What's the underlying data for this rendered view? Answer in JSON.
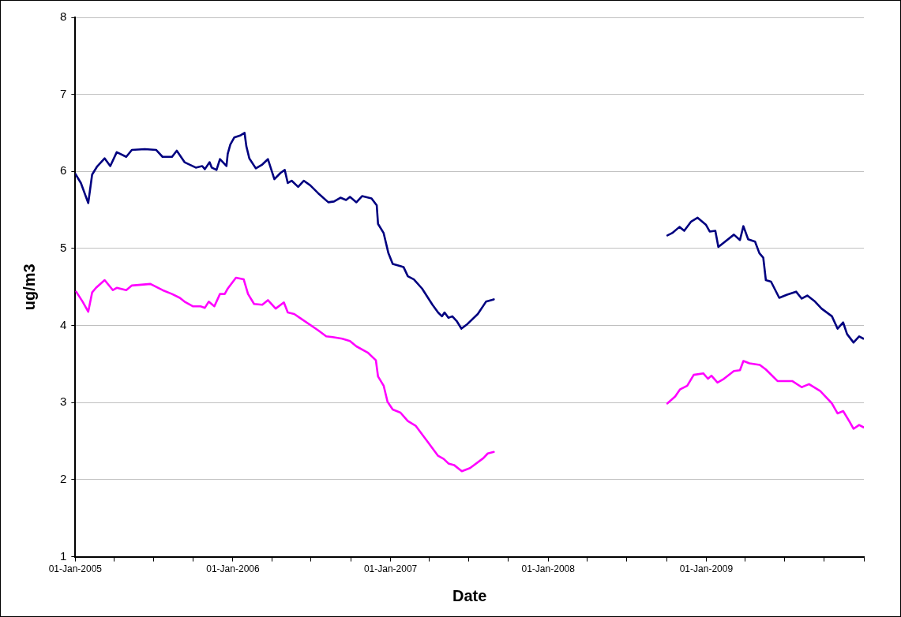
{
  "chart_data": {
    "type": "line",
    "xlabel": "Date",
    "ylabel": "ug/m3",
    "grid": "y",
    "legend": false,
    "marker": "none",
    "line_style": "solid",
    "xlim": [
      "2005-01-01",
      "2010-01-01"
    ],
    "xticks": [
      {
        "value": "2005-01-01",
        "label": "01-Jan-2005"
      },
      {
        "value": "2005-04-01",
        "label": null
      },
      {
        "value": "2005-07-01",
        "label": null
      },
      {
        "value": "2005-10-01",
        "label": null
      },
      {
        "value": "2006-01-01",
        "label": "01-Jan-2006"
      },
      {
        "value": "2006-04-01",
        "label": null
      },
      {
        "value": "2006-07-01",
        "label": null
      },
      {
        "value": "2006-10-01",
        "label": null
      },
      {
        "value": "2007-01-01",
        "label": "01-Jan-2007"
      },
      {
        "value": "2007-04-01",
        "label": null
      },
      {
        "value": "2007-07-01",
        "label": null
      },
      {
        "value": "2007-10-01",
        "label": null
      },
      {
        "value": "2008-01-01",
        "label": "01-Jan-2008"
      },
      {
        "value": "2008-04-01",
        "label": null
      },
      {
        "value": "2008-07-01",
        "label": null
      },
      {
        "value": "2008-10-01",
        "label": null
      },
      {
        "value": "2009-01-01",
        "label": "01-Jan-2009"
      },
      {
        "value": "2009-04-01",
        "label": null
      },
      {
        "value": "2009-07-01",
        "label": null
      },
      {
        "value": "2009-10-01",
        "label": null
      },
      {
        "value": "2010-01-01",
        "label": null
      }
    ],
    "ylim": [
      1,
      8
    ],
    "yticks": [
      1,
      2,
      3,
      4,
      5,
      6,
      7,
      8
    ],
    "series": [
      {
        "color": "#000080",
        "x": [
          "2005-01-01",
          "2005-01-14",
          "2005-01-31",
          "2005-02-09",
          "2005-02-20",
          "2005-03-10",
          "2005-03-23",
          "2005-04-07",
          "2005-04-29",
          "2005-05-12",
          "2005-06-11",
          "2005-07-07",
          "2005-07-22",
          "2005-08-13",
          "2005-08-24",
          "2005-09-11",
          "2005-10-07",
          "2005-10-22",
          "2005-10-28",
          "2005-11-08",
          "2005-11-13",
          "2005-11-24",
          "2005-12-02",
          "2005-12-17",
          "2005-12-20",
          "2005-12-26",
          "2006-01-04",
          "2006-01-19",
          "2006-01-28",
          "2006-02-01",
          "2006-02-08",
          "2006-02-23",
          "2006-03-10",
          "2006-03-23",
          "2006-04-07",
          "2006-04-21",
          "2006-05-01",
          "2006-05-08",
          "2006-05-17",
          "2006-06-01",
          "2006-06-14",
          "2006-06-29",
          "2006-07-17",
          "2006-08-10",
          "2006-08-23",
          "2006-09-07",
          "2006-09-20",
          "2006-09-29",
          "2006-10-14",
          "2006-10-27",
          "2006-11-18",
          "2006-11-30",
          "2006-12-03",
          "2006-12-16",
          "2006-12-27",
          "2007-01-06",
          "2007-01-31",
          "2007-02-10",
          "2007-02-24",
          "2007-03-15",
          "2007-04-08",
          "2007-04-21",
          "2007-04-30",
          "2007-05-06",
          "2007-05-15",
          "2007-05-24",
          "2007-06-03",
          "2007-06-14",
          "2007-06-28",
          "2007-07-22",
          "2007-08-10",
          "2007-08-28",
          "2008-01-01",
          "2008-10-03",
          "2008-10-14",
          "2008-10-31",
          "2008-11-11",
          "2008-11-27",
          "2008-12-12",
          "2008-12-31",
          "2009-01-09",
          "2009-01-22",
          "2009-01-29",
          "2009-02-09",
          "2009-03-06",
          "2009-03-20",
          "2009-03-28",
          "2009-04-08",
          "2009-04-24",
          "2009-05-04",
          "2009-05-13",
          "2009-05-19",
          "2009-05-31",
          "2009-06-19",
          "2009-07-07",
          "2009-07-28",
          "2009-08-10",
          "2009-08-23",
          "2009-09-10",
          "2009-09-25",
          "2009-10-19",
          "2009-11-01",
          "2009-11-14",
          "2009-11-23",
          "2009-12-08",
          "2009-12-21",
          "2009-12-31"
        ],
        "values": [
          5.97,
          5.85,
          5.59,
          5.96,
          6.06,
          6.17,
          6.07,
          6.25,
          6.19,
          6.28,
          6.29,
          6.28,
          6.19,
          6.19,
          6.27,
          6.12,
          6.05,
          6.07,
          6.03,
          6.12,
          6.05,
          6.02,
          6.16,
          6.07,
          6.23,
          6.35,
          6.44,
          6.47,
          6.5,
          6.33,
          6.17,
          6.04,
          6.09,
          6.16,
          5.9,
          5.98,
          6.02,
          5.85,
          5.88,
          5.8,
          5.88,
          5.82,
          5.72,
          5.6,
          5.61,
          5.66,
          5.63,
          5.67,
          5.6,
          5.68,
          5.65,
          5.56,
          5.32,
          5.2,
          4.94,
          4.8,
          4.76,
          4.64,
          4.6,
          4.48,
          4.27,
          4.17,
          4.12,
          4.17,
          4.1,
          4.12,
          4.06,
          3.96,
          4.02,
          4.15,
          4.31,
          4.34,
          null,
          5.17,
          5.2,
          5.28,
          5.23,
          5.35,
          5.4,
          5.31,
          5.22,
          5.23,
          5.02,
          5.07,
          5.18,
          5.11,
          5.29,
          5.12,
          5.09,
          4.94,
          4.88,
          4.59,
          4.57,
          4.36,
          4.4,
          4.44,
          4.35,
          4.39,
          4.31,
          4.22,
          4.12,
          3.96,
          4.04,
          3.89,
          3.78,
          3.86,
          3.83
        ]
      },
      {
        "color": "#ff00ff",
        "x": [
          "2005-01-03",
          "2005-01-18",
          "2005-01-31",
          "2005-02-09",
          "2005-02-18",
          "2005-03-10",
          "2005-03-29",
          "2005-04-07",
          "2005-04-29",
          "2005-05-12",
          "2005-06-24",
          "2005-07-22",
          "2005-08-13",
          "2005-08-31",
          "2005-09-11",
          "2005-09-30",
          "2005-10-18",
          "2005-10-28",
          "2005-11-06",
          "2005-11-19",
          "2005-12-02",
          "2005-12-13",
          "2005-12-20",
          "2006-01-08",
          "2006-01-26",
          "2006-02-05",
          "2006-02-19",
          "2006-03-10",
          "2006-03-23",
          "2006-04-10",
          "2006-04-29",
          "2006-05-08",
          "2006-05-23",
          "2006-06-05",
          "2006-07-17",
          "2006-08-05",
          "2006-08-20",
          "2006-09-11",
          "2006-09-29",
          "2006-10-14",
          "2006-11-09",
          "2006-11-28",
          "2006-12-03",
          "2006-12-16",
          "2006-12-25",
          "2007-01-06",
          "2007-01-24",
          "2007-02-10",
          "2007-02-28",
          "2007-03-28",
          "2007-04-21",
          "2007-05-04",
          "2007-05-15",
          "2007-05-28",
          "2007-06-15",
          "2007-07-04",
          "2007-08-04",
          "2007-08-14",
          "2007-08-28",
          "2008-01-01",
          "2008-10-03",
          "2008-10-21",
          "2008-11-01",
          "2008-11-18",
          "2008-12-03",
          "2008-12-25",
          "2009-01-05",
          "2009-01-13",
          "2009-01-27",
          "2009-02-11",
          "2009-03-06",
          "2009-03-20",
          "2009-03-28",
          "2009-04-11",
          "2009-05-05",
          "2009-05-19",
          "2009-06-15",
          "2009-07-19",
          "2009-08-10",
          "2009-08-27",
          "2009-09-22",
          "2009-10-19",
          "2009-11-01",
          "2009-11-14",
          "2009-11-29",
          "2009-12-08",
          "2009-12-21",
          "2009-12-31"
        ],
        "values": [
          4.44,
          4.31,
          4.18,
          4.43,
          4.49,
          4.59,
          4.46,
          4.49,
          4.46,
          4.52,
          4.54,
          4.46,
          4.41,
          4.36,
          4.31,
          4.25,
          4.25,
          4.23,
          4.31,
          4.25,
          4.41,
          4.41,
          4.48,
          4.62,
          4.6,
          4.41,
          4.28,
          4.27,
          4.33,
          4.22,
          4.3,
          4.17,
          4.15,
          4.1,
          3.94,
          3.86,
          3.85,
          3.83,
          3.8,
          3.73,
          3.65,
          3.55,
          3.34,
          3.22,
          3.01,
          2.91,
          2.87,
          2.76,
          2.7,
          2.49,
          2.31,
          2.27,
          2.21,
          2.19,
          2.11,
          2.15,
          2.28,
          2.34,
          2.36,
          null,
          2.99,
          3.08,
          3.17,
          3.22,
          3.36,
          3.38,
          3.31,
          3.35,
          3.26,
          3.31,
          3.41,
          3.42,
          3.54,
          3.51,
          3.49,
          3.43,
          3.28,
          3.28,
          3.2,
          3.24,
          3.15,
          2.99,
          2.86,
          2.89,
          2.75,
          2.66,
          2.71,
          2.68
        ]
      }
    ]
  }
}
